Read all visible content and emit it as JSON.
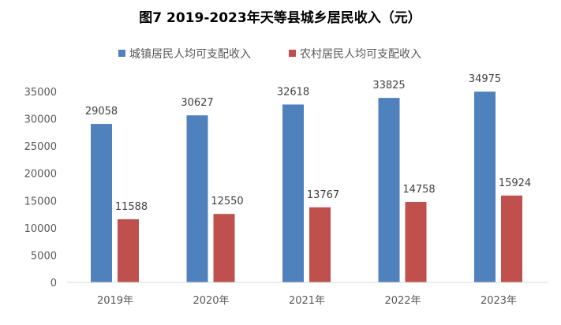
{
  "chart_data": {
    "type": "bar",
    "title": "图7  2019-2023年天等县城乡居民收入（元）",
    "categories": [
      "2019年",
      "2020年",
      "2021年",
      "2022年",
      "2023年"
    ],
    "series": [
      {
        "name": "城镇居民人均可支配收入",
        "color": "#4F81BD",
        "values": [
          29058,
          30627,
          32618,
          33825,
          34975
        ]
      },
      {
        "name": "农村居民人均可支配收入",
        "color": "#C0504D",
        "values": [
          11588,
          12550,
          13767,
          14758,
          15924
        ]
      }
    ],
    "yticks": [
      0,
      5000,
      10000,
      15000,
      20000,
      25000,
      30000,
      35000
    ],
    "ylim": [
      0,
      35000
    ],
    "xlabel": "",
    "ylabel": "",
    "grid": false,
    "legend": "top"
  }
}
